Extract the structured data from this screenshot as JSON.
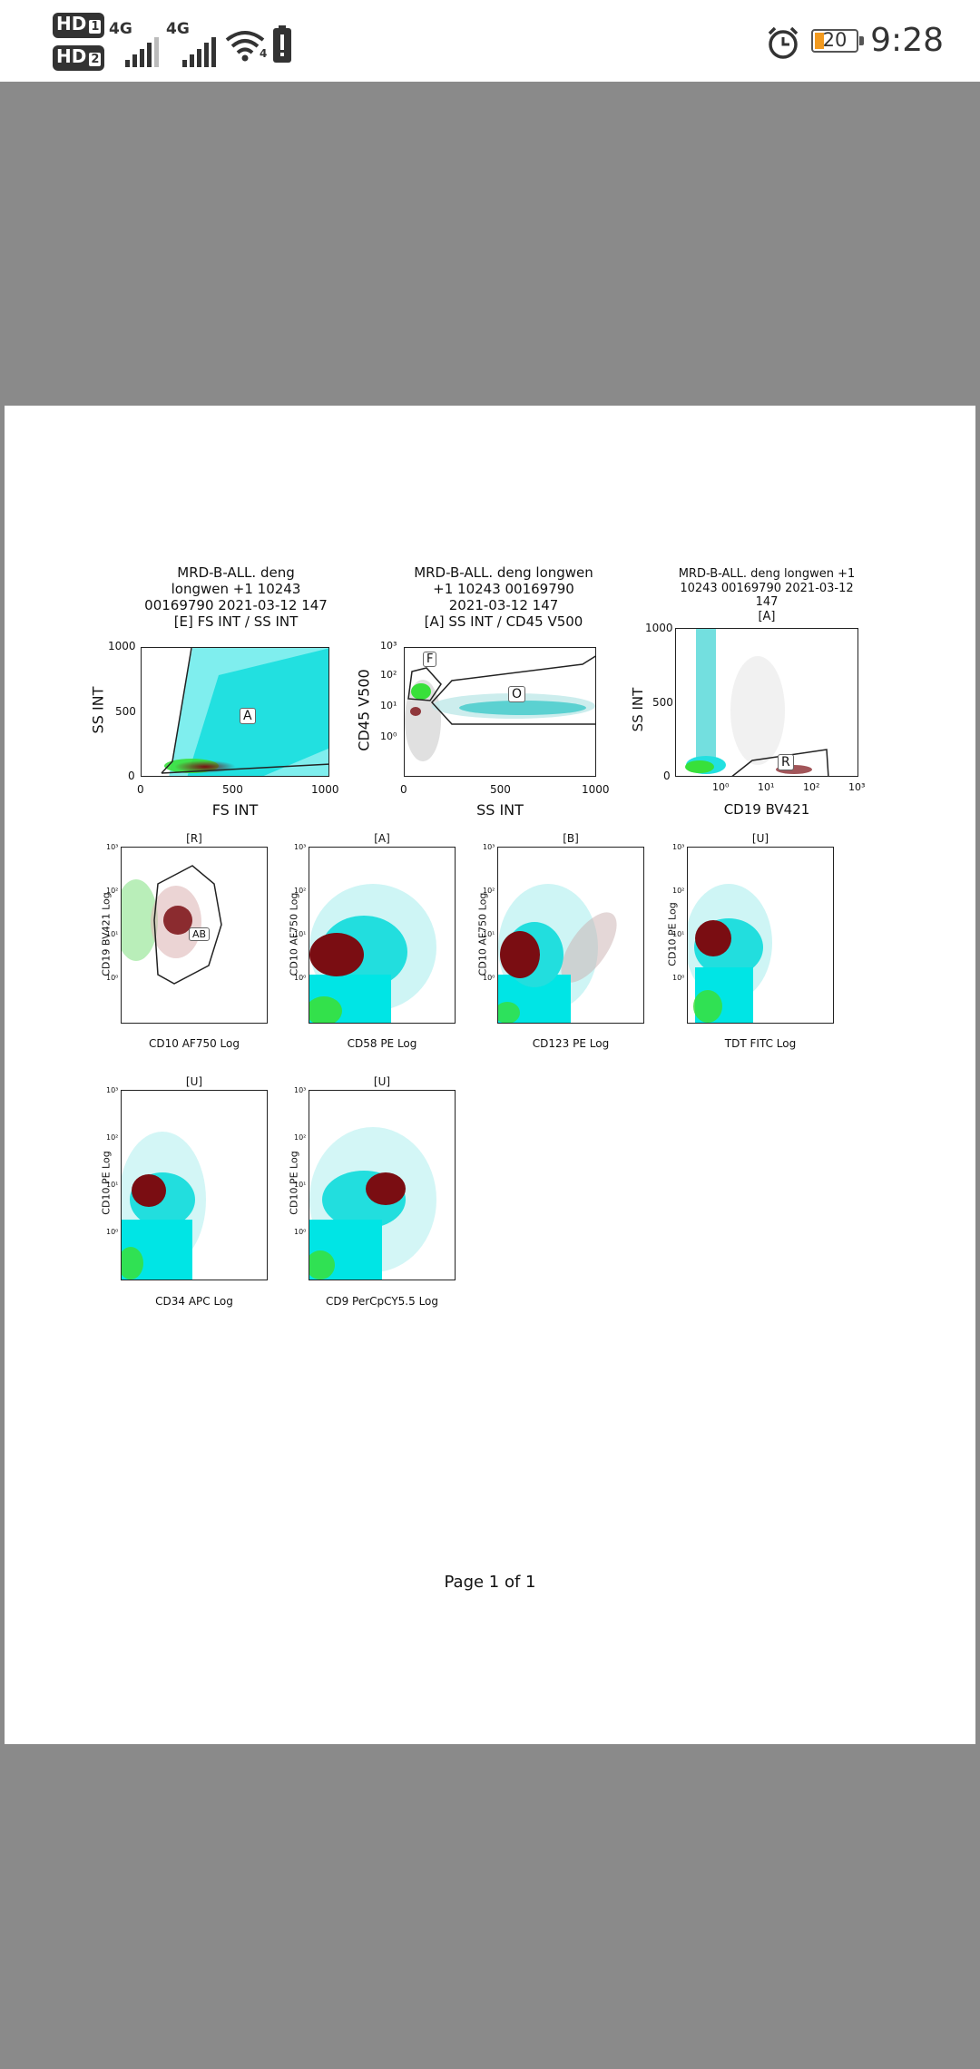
{
  "status_bar": {
    "sim1": "HD",
    "sim1_slot": "1",
    "sim2": "HD",
    "sim2_slot": "2",
    "network1": "4G",
    "network2": "4G",
    "wifi_badge": "4",
    "battery_level": "20",
    "time": "9:28",
    "icons": [
      "sim-hd-icon",
      "signal-icon",
      "wifi-icon",
      "alert-icon",
      "alarm-icon",
      "battery-icon"
    ]
  },
  "colors": {
    "cyan": "#00e5e5",
    "green": "#38e03a",
    "maroon": "#7a0d12",
    "gray": "#777777",
    "battery_fill": "#f29a1f"
  },
  "plots": [
    {
      "title": "MRD-B-ALL. deng\nlongwen +1 10243\n00169790 2021-03-12 147\n[E] FS INT / SS INT",
      "xlabel": "FS INT",
      "ylabel": "SS INT",
      "xticks": [
        "0",
        "500",
        "1000"
      ],
      "yticks": [
        "1000",
        "500",
        "0"
      ],
      "gates": [
        "A"
      ]
    },
    {
      "title": "MRD-B-ALL. deng longwen\n+1 10243 00169790\n2021-03-12 147\n[A] SS INT / CD45 V500",
      "xlabel": "SS INT",
      "ylabel": "CD45 V500",
      "xticks": [
        "0",
        "500",
        "1000"
      ],
      "yticks": [
        "10³",
        "10²",
        "10¹",
        "10⁰"
      ],
      "gates": [
        "F",
        "O"
      ]
    },
    {
      "title": "MRD-B-ALL. deng longwen +1\n10243 00169790 2021-03-12\n147\n[A]",
      "xlabel": "CD19 BV421",
      "ylabel": "SS INT",
      "xticks": [
        "10⁰",
        "10¹",
        "10²",
        "10³"
      ],
      "yticks": [
        "1000",
        "500",
        "0"
      ],
      "gates": [
        "R"
      ]
    },
    {
      "title": "[R]",
      "xlabel": "CD10 AF750 Log",
      "ylabel": "CD19 BV421 Log",
      "gates": [
        "AB"
      ]
    },
    {
      "title": "[A]",
      "xlabel": "CD58 PE Log",
      "ylabel": "CD10 AF750 Log",
      "gates": []
    },
    {
      "title": "[B]",
      "xlabel": "CD123 PE Log",
      "ylabel": "CD10 AF750 Log",
      "gates": []
    },
    {
      "title": "[U]",
      "xlabel": "TDT FITC Log",
      "ylabel": "CD10 PE Log",
      "gates": []
    },
    {
      "title": "[U]",
      "xlabel": "CD34 APC Log",
      "ylabel": "CD10 PE Log",
      "gates": []
    },
    {
      "title": "[U]",
      "xlabel": "CD9 PerCpCY5.5 Log",
      "ylabel": "CD10 PE Log",
      "gates": []
    }
  ],
  "small_log_ticks": [
    "10³",
    "10²",
    "10¹",
    "10⁰"
  ],
  "footer": "Page 1 of 1"
}
